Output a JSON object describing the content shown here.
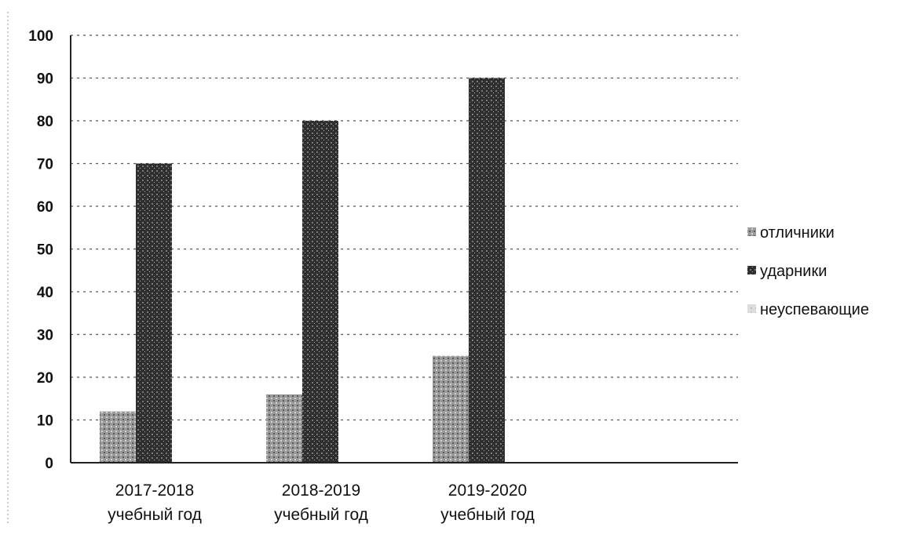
{
  "chart_data": {
    "type": "bar",
    "title": "",
    "xlabel": "",
    "ylabel": "",
    "ylim": [
      0,
      100
    ],
    "yticks": [
      0,
      10,
      20,
      30,
      40,
      50,
      60,
      70,
      80,
      90,
      100
    ],
    "grid": true,
    "legend_position": "right",
    "categories": [
      [
        "2017-2018",
        "учебный год"
      ],
      [
        "2018-2019",
        "учебный год"
      ],
      [
        "2019-2020",
        "учебный год"
      ]
    ],
    "series": [
      {
        "name": "отличники",
        "values": [
          12,
          16,
          25
        ],
        "color": "#8a8a8a"
      },
      {
        "name": "ударники",
        "values": [
          70,
          80,
          90
        ],
        "color": "#3a3a3a"
      },
      {
        "name": "неуспевающие",
        "values": [
          0,
          0,
          0
        ],
        "color": "#c8c8c8"
      }
    ]
  }
}
